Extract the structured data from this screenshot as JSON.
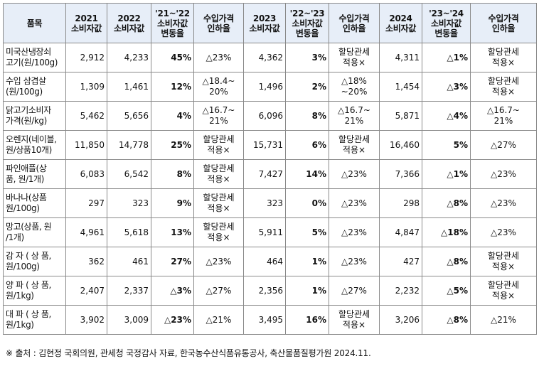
{
  "table": {
    "headers": [
      "품목",
      "2021\n소비자값",
      "2022\n소비자값",
      "'21~'22\n소비자값\n변동율",
      "수입가격\n인하율",
      "2023\n소비자값",
      "'22~'23\n소비자값\n변동율",
      "수입가격\n인하율",
      "2024\n소비자값",
      "'23~'24\n소비자값\n변동율",
      "수입가격\n인하율"
    ],
    "rows": [
      [
        "미국산냉장쇠\n고기(원/100g)",
        "2,912",
        "4,233",
        "45%",
        "△23%",
        "4,362",
        "3%",
        "할당관세\n적용×",
        "4,311",
        "△1%",
        "할당관세\n적용×"
      ],
      [
        "수입  삼겹살\n(원/100g)",
        "1,309",
        "1,461",
        "12%",
        "△18.4~\n20%",
        "1,496",
        "2%",
        "△18%\n~20%",
        "1,454",
        "△3%",
        "할당관세\n적용×"
      ],
      [
        "닭고기소비자\n가격(원/kg)",
        "5,462",
        "5,656",
        "4%",
        "△16.7~\n21%",
        "6,096",
        "8%",
        "△16.7~\n21%",
        "5,871",
        "△4%",
        "△16.7~\n21%"
      ],
      [
        "오렌지(네이블,\n원/상품10개)",
        "11,850",
        "14,778",
        "25%",
        "할당관세\n적용×",
        "15,731",
        "6%",
        "할당관세\n적용×",
        "16,460",
        "5%",
        "△27%"
      ],
      [
        "파인애플(상\n품, 원/1개)",
        "6,083",
        "6,542",
        "8%",
        "할당관세\n적용×",
        "7,427",
        "14%",
        "△23%",
        "7,366",
        "△1%",
        "△23%"
      ],
      [
        "바나나(상품\n원/100g)",
        "297",
        "323",
        "9%",
        "할당관세\n적용×",
        "323",
        "0%",
        "△23%",
        "298",
        "△8%",
        "△23%"
      ],
      [
        "망고(상품, 원\n/1개)",
        "4,961",
        "5,618",
        "13%",
        "할당관세\n적용×",
        "5,911",
        "5%",
        "△23%",
        "4,847",
        "△18%",
        "△23%"
      ],
      [
        "감 자 ( 상 품,\n원/100g)",
        "362",
        "461",
        "27%",
        "△23%",
        "464",
        "1%",
        "△23%",
        "427",
        "△8%",
        "할당관세\n적용×"
      ],
      [
        "양 파 ( 상 품,\n원/1kg)",
        "2,407",
        "2,337",
        "△3%",
        "△27%",
        "2,356",
        "1%",
        "△27%",
        "2,232",
        "△5%",
        "할당관세\n적용×"
      ],
      [
        "대 파 ( 상 품,\n원/1kg)",
        "3,902",
        "3,009",
        "△23%",
        "△21%",
        "3,495",
        "16%",
        "할당관세\n적용×",
        "3,206",
        "△8%",
        "△21%"
      ]
    ]
  },
  "footnote": "※ 출처 : 김현정 국회의원, 관세청 국정감사 자료, 한국농수산식품유통공사, 축산물품질평가원 2024.11."
}
